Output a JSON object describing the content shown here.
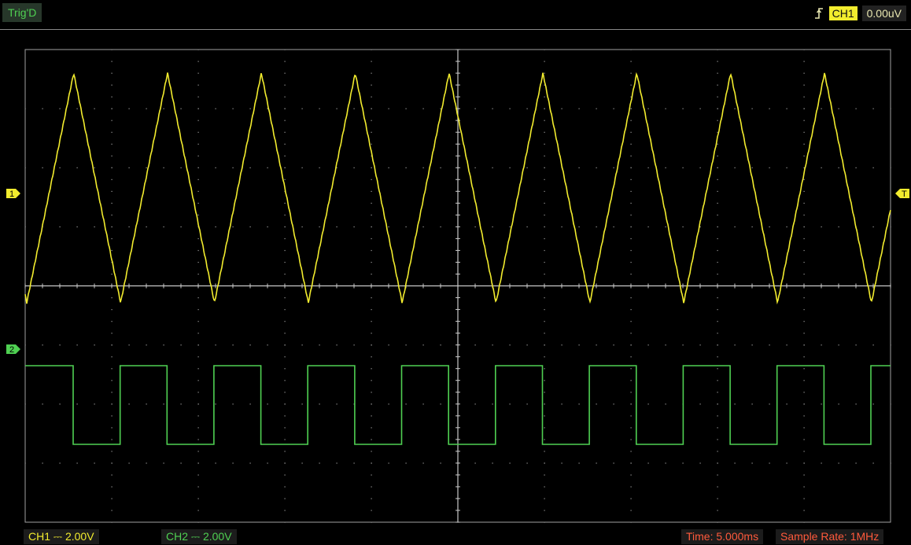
{
  "header": {
    "trigger_status": "Trig'D",
    "trigger_channel": "CH1",
    "trigger_level": "0.00uV",
    "trigger_edge_icon": "rising-edge-icon"
  },
  "markers": {
    "ch1_marker": "1",
    "ch2_marker": "2",
    "trigger_marker": "T"
  },
  "footer": {
    "ch1_scale": "CH1 ⎓  2.00V",
    "ch2_scale": "CH2 ⎓  2.00V",
    "timebase": "Time: 5.000ms",
    "sample_rate": "Sample Rate: 1MHz"
  },
  "colors": {
    "ch1": "#f2ec2e",
    "ch2": "#4fd052",
    "grid": "#9a9a9a",
    "status_text": "#ff5a3c"
  }
}
